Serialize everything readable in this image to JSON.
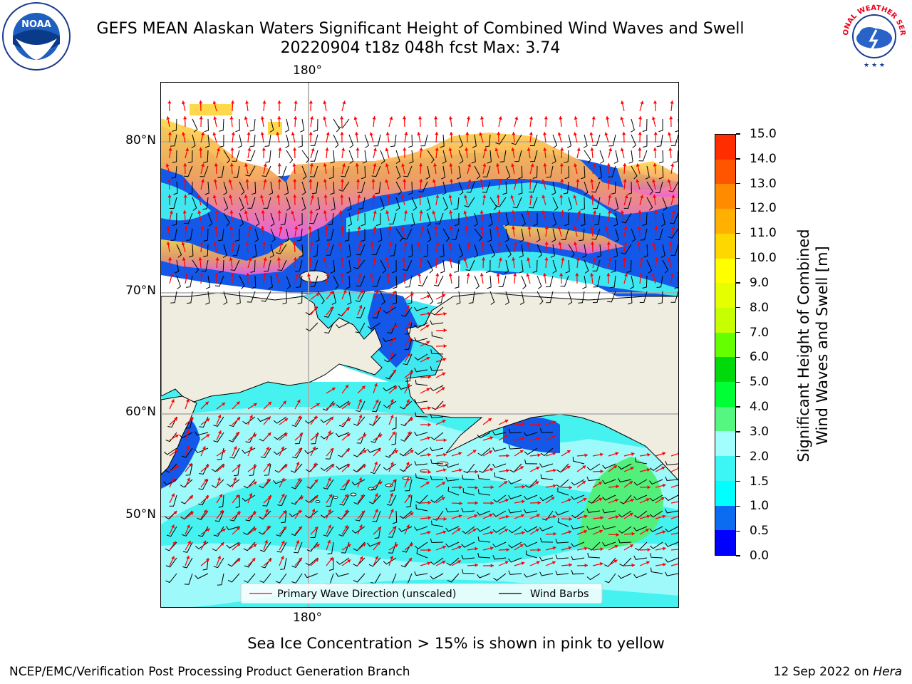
{
  "title": {
    "line1": "GEFS MEAN Alaskan Waters Significant Height of Combined Wind Waves and Swell",
    "line2": "20220904 t18z 048h fcst   Max: 3.74"
  },
  "logos": {
    "left": {
      "name": "noaa-logo",
      "text": "NOAA"
    },
    "right": {
      "name": "nws-logo",
      "text": "NATIONAL WEATHER SERVICE"
    }
  },
  "map": {
    "lon_labels": {
      "top": "180°",
      "bottom": "180°"
    },
    "lat_labels": [
      "80°N",
      "70°N",
      "60°N",
      "50°N"
    ],
    "land_color": "#efeddf",
    "legend": {
      "wave_label": "Primary Wave Direction (unscaled)",
      "wave_color": "#ff0000",
      "wind_label": "Wind Barbs",
      "wind_color": "#000000"
    }
  },
  "colorbar": {
    "label_line1": "Significant Height of Combined",
    "label_line2": "Wind Waves and Swell [m]",
    "tick_labels": [
      "0.0",
      "0.5",
      "1.0",
      "1.5",
      "2.0",
      "3.0",
      "4.0",
      "5.0",
      "6.0",
      "7.0",
      "8.0",
      "9.0",
      "10.0",
      "11.0",
      "12.0",
      "13.0",
      "14.0",
      "15.0"
    ],
    "colors": [
      "#0000ff",
      "#0b6cf2",
      "#00ffff",
      "#3cf5f5",
      "#a2fdfd",
      "#56f780",
      "#00ff35",
      "#00d90a",
      "#66ff00",
      "#c8ff00",
      "#e6ff00",
      "#ffff00",
      "#ffd700",
      "#ffb000",
      "#ff8c00",
      "#ff5500",
      "#ff2d00"
    ]
  },
  "caption": "Sea Ice Concentration > 15% is shown in pink to yellow",
  "footer": {
    "left": "NCEP/EMC/Verification Post Processing Product Generation Branch",
    "right_prefix": "12 Sep 2022 on ",
    "right_italic": "Hera"
  }
}
